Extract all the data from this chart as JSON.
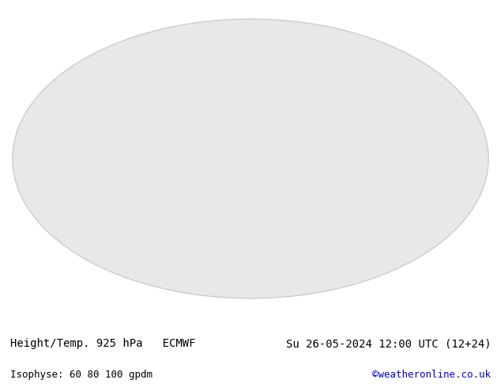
{
  "title_left": "Height/Temp. 925 hPa   ECMWF",
  "title_right": "Su 26-05-2024 12:00 UTC (12+24)",
  "subtitle_left": "Isophyse: 60 80 100 gpdm",
  "subtitle_right": "©weatheronline.co.uk",
  "bg_color": "#ffffff",
  "map_bg_color": "#e8e8e8",
  "land_color": "#cceeaa",
  "ocean_color": "#e8e8e8",
  "border_color": "#888888",
  "title_fontsize": 10,
  "subtitle_fontsize": 9,
  "subtitle_color_right": "#0000cc",
  "text_color": "#000000",
  "projection": "robinson",
  "central_longitude": 0
}
